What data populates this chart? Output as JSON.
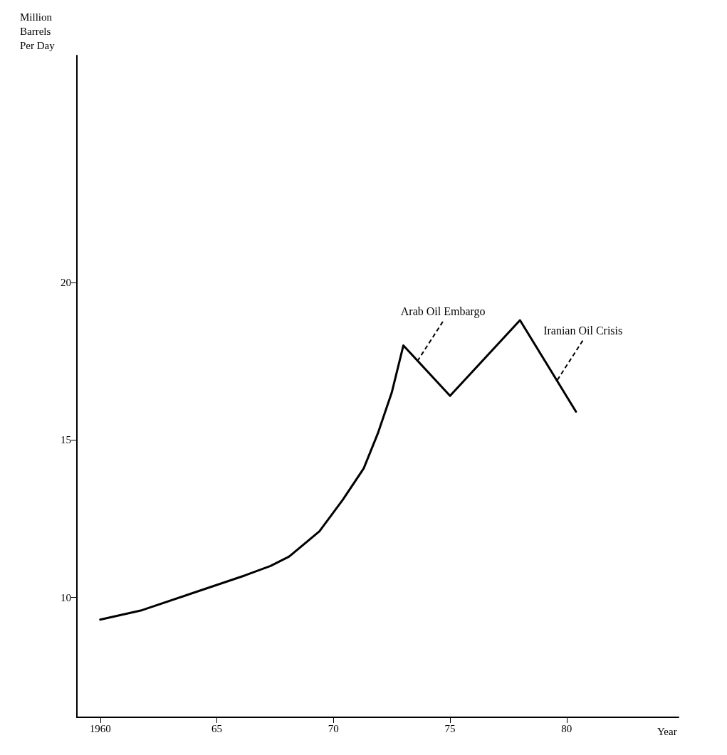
{
  "chart_data": {
    "type": "line",
    "xlabel": "Year",
    "ylabel": "Million\nBarrels\nPer Day",
    "x": [
      1960,
      1961.8,
      1963.8,
      1966.2,
      1967.3,
      1968.1,
      1969.4,
      1970.4,
      1971.3,
      1971.9,
      1972.5,
      1973,
      1975,
      1978,
      1980.4
    ],
    "series": [
      {
        "color": "#000000",
        "values": [
          9.3,
          9.6,
          10.1,
          10.7,
          11,
          11.3,
          12.1,
          13.1,
          14.1,
          15.2,
          16.5,
          18,
          16.4,
          18.8,
          15.9
        ]
      }
    ],
    "xlim": [
      1959,
      1984.8
    ],
    "ylim": [
      6.2,
      27.2
    ],
    "xticks": [
      1960,
      {
        "value": 1965,
        "label": "65"
      },
      {
        "value": 1970,
        "label": "70"
      },
      {
        "value": 1975,
        "label": "75"
      },
      {
        "value": 1980,
        "label": "80"
      }
    ],
    "yticks": [
      10,
      15,
      20
    ],
    "marker": "none",
    "line_style": "solid",
    "annotations": [
      {
        "text": "Arab Oil Embargo",
        "x": 1973.6,
        "y": 17.5
      },
      {
        "text": "Iranian Oil Crisis",
        "x": 1979.6,
        "y": 16.9
      }
    ]
  }
}
